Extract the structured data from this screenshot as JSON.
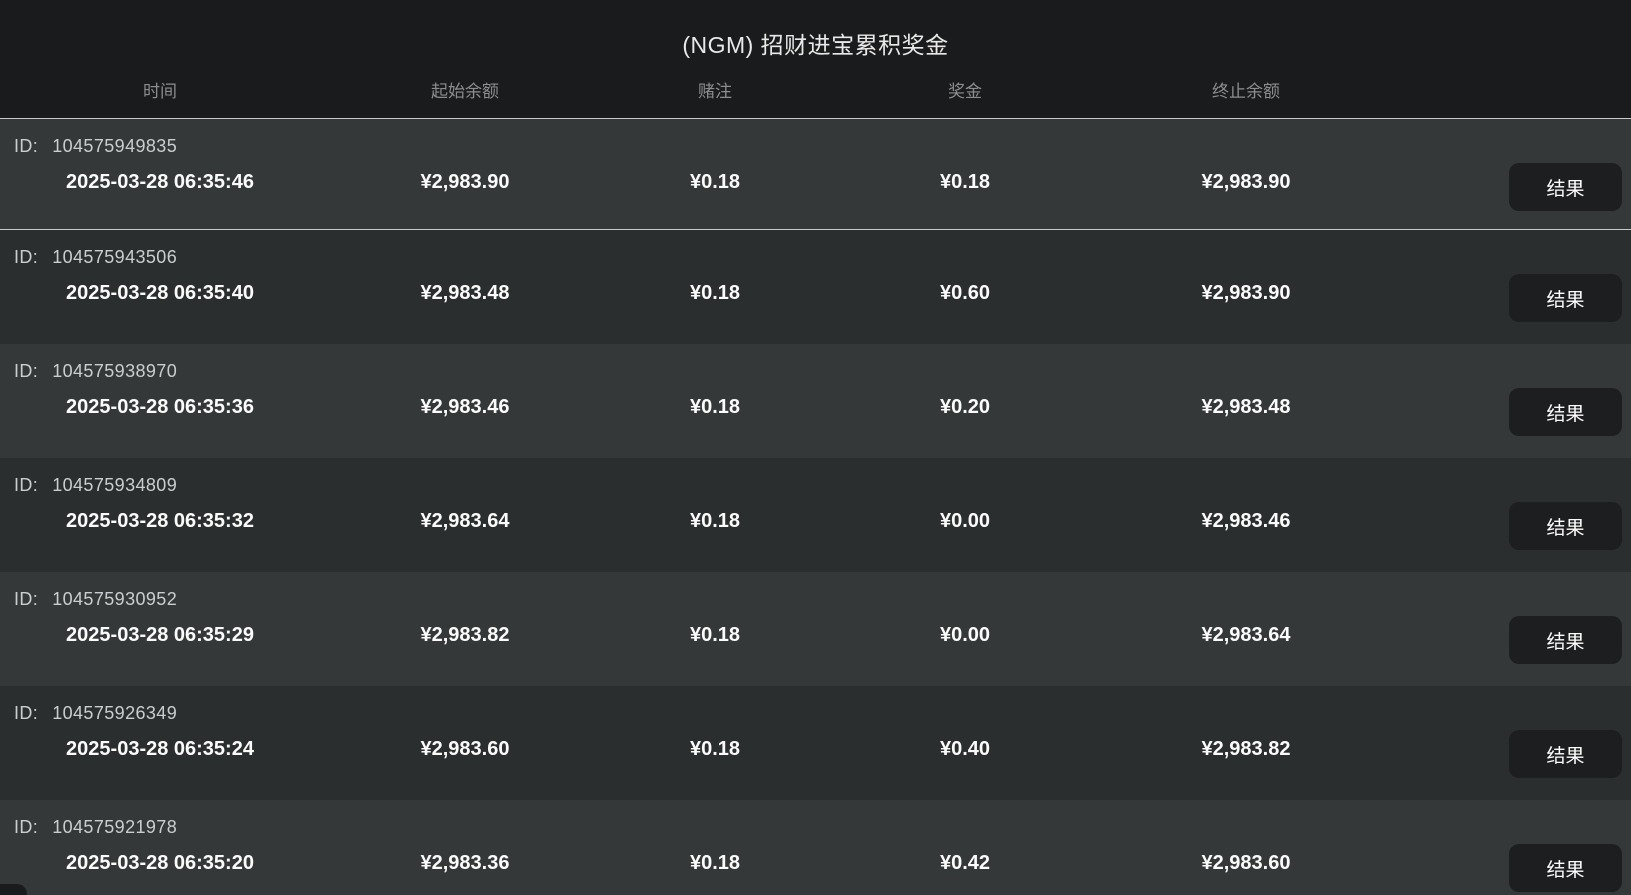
{
  "header": {
    "title": "(NGM) 招财进宝累积奖金",
    "columns": {
      "time": "时间",
      "start_balance": "起始余额",
      "bet": "赌注",
      "prize": "奖金",
      "end_balance": "终止余额"
    }
  },
  "labels": {
    "id_prefix": "ID:",
    "result_button": "结果"
  },
  "rows": [
    {
      "id": "104575949835",
      "time": "2025-03-28 06:35:46",
      "start_balance": "¥2,983.90",
      "bet": "¥0.18",
      "prize": "¥0.18",
      "end_balance": "¥2,983.90"
    },
    {
      "id": "104575943506",
      "time": "2025-03-28 06:35:40",
      "start_balance": "¥2,983.48",
      "bet": "¥0.18",
      "prize": "¥0.60",
      "end_balance": "¥2,983.90"
    },
    {
      "id": "104575938970",
      "time": "2025-03-28 06:35:36",
      "start_balance": "¥2,983.46",
      "bet": "¥0.18",
      "prize": "¥0.20",
      "end_balance": "¥2,983.48"
    },
    {
      "id": "104575934809",
      "time": "2025-03-28 06:35:32",
      "start_balance": "¥2,983.64",
      "bet": "¥0.18",
      "prize": "¥0.00",
      "end_balance": "¥2,983.46"
    },
    {
      "id": "104575930952",
      "time": "2025-03-28 06:35:29",
      "start_balance": "¥2,983.82",
      "bet": "¥0.18",
      "prize": "¥0.00",
      "end_balance": "¥2,983.64"
    },
    {
      "id": "104575926349",
      "time": "2025-03-28 06:35:24",
      "start_balance": "¥2,983.60",
      "bet": "¥0.18",
      "prize": "¥0.40",
      "end_balance": "¥2,983.82"
    },
    {
      "id": "104575921978",
      "time": "2025-03-28 06:35:20",
      "start_balance": "¥2,983.36",
      "bet": "¥0.18",
      "prize": "¥0.42",
      "end_balance": "¥2,983.60"
    }
  ],
  "colors": {
    "page_background": "#1a1b1c",
    "row_light": "#343839",
    "row_dark": "#2b2e2f",
    "separator_line": "#c7caca",
    "button_background": "#1d1e20",
    "value_text": "#fbfbfb",
    "header_text": "#8b8e90"
  }
}
